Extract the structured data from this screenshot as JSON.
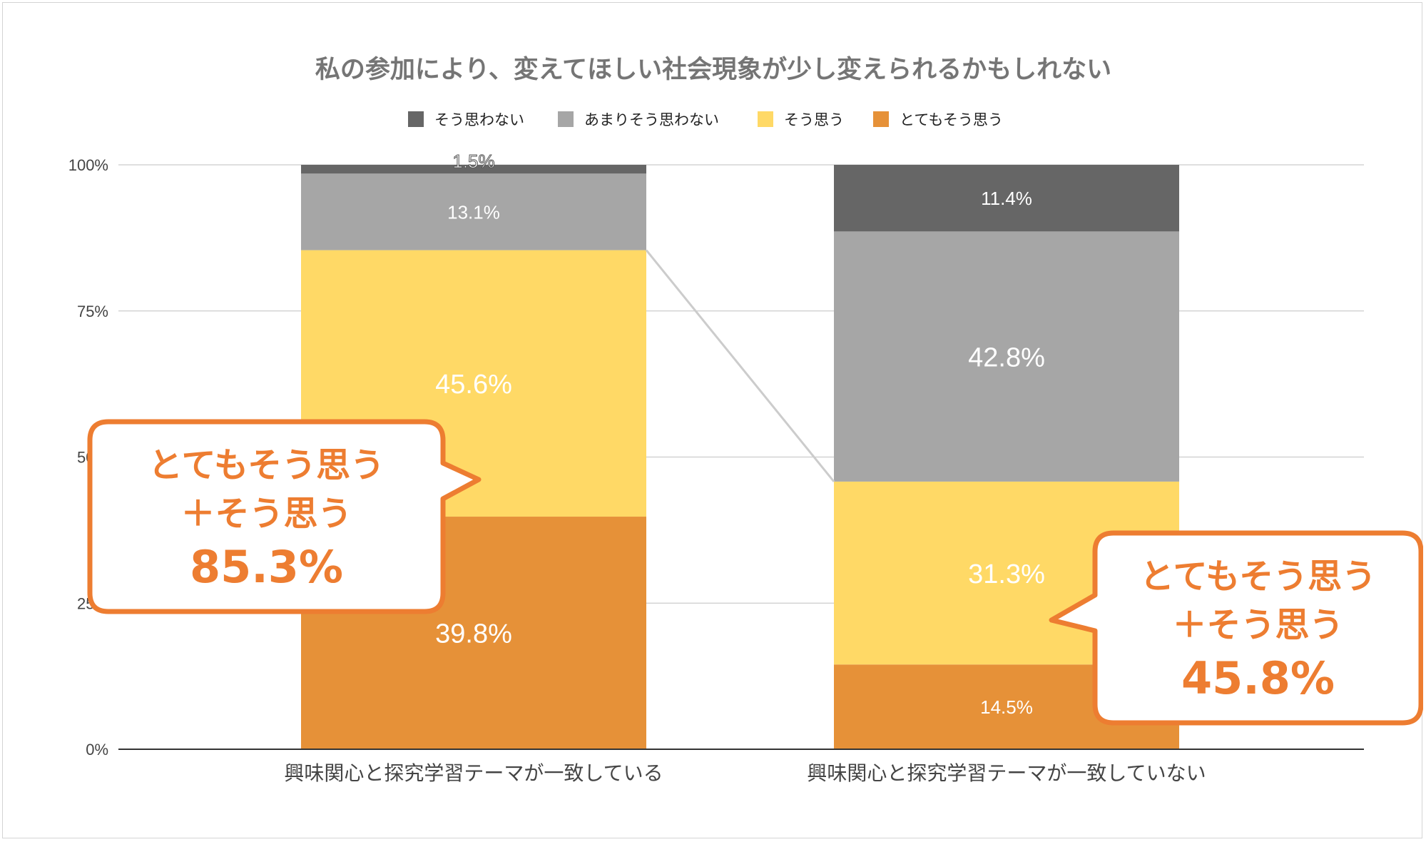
{
  "chart_data": {
    "type": "bar",
    "stacked": true,
    "normalized": true,
    "title": "私の参加により、変えてほしい社会現象が少し変えられるかもしれない",
    "categories": [
      "興味関心と探究学習テーマが一致している",
      "興味関心と探究学習テーマが一致していない"
    ],
    "series": [
      {
        "name": "とてもそう思う",
        "color": "#e69138",
        "values": [
          39.8,
          14.5
        ]
      },
      {
        "name": "そう思う",
        "color": "#ffd966",
        "values": [
          45.6,
          31.3
        ]
      },
      {
        "name": "あまりそう思わない",
        "color": "#a6a6a6",
        "values": [
          13.1,
          42.8
        ]
      },
      {
        "name": "そう思わない",
        "color": "#666666",
        "values": [
          1.5,
          11.4
        ]
      }
    ],
    "legend": {
      "placement": "top",
      "order": [
        "そう思わない",
        "あまりそう思わない",
        "そう思う",
        "とてもそう思う"
      ]
    },
    "value_labels": [
      [
        "39.8%",
        "45.6%",
        "13.1%",
        "1.5%"
      ],
      [
        "14.5%",
        "31.3%",
        "42.8%",
        "11.4%"
      ]
    ],
    "yticks": [
      "0%",
      "25%",
      "50%",
      "75%",
      "100%"
    ],
    "ylim": [
      0,
      100
    ],
    "grid": true,
    "annotations": [
      {
        "line1": "とてもそう思う",
        "line2": "＋そう思う",
        "value": "85.3%",
        "category": 0
      },
      {
        "line1": "とてもそう思う",
        "line2": "＋そう思う",
        "value": "45.8%",
        "category": 1
      }
    ]
  },
  "colors": {
    "accent": "#ed7d31",
    "gridline": "#cccccc",
    "axis": "#333333",
    "connector": "#cccccc"
  }
}
